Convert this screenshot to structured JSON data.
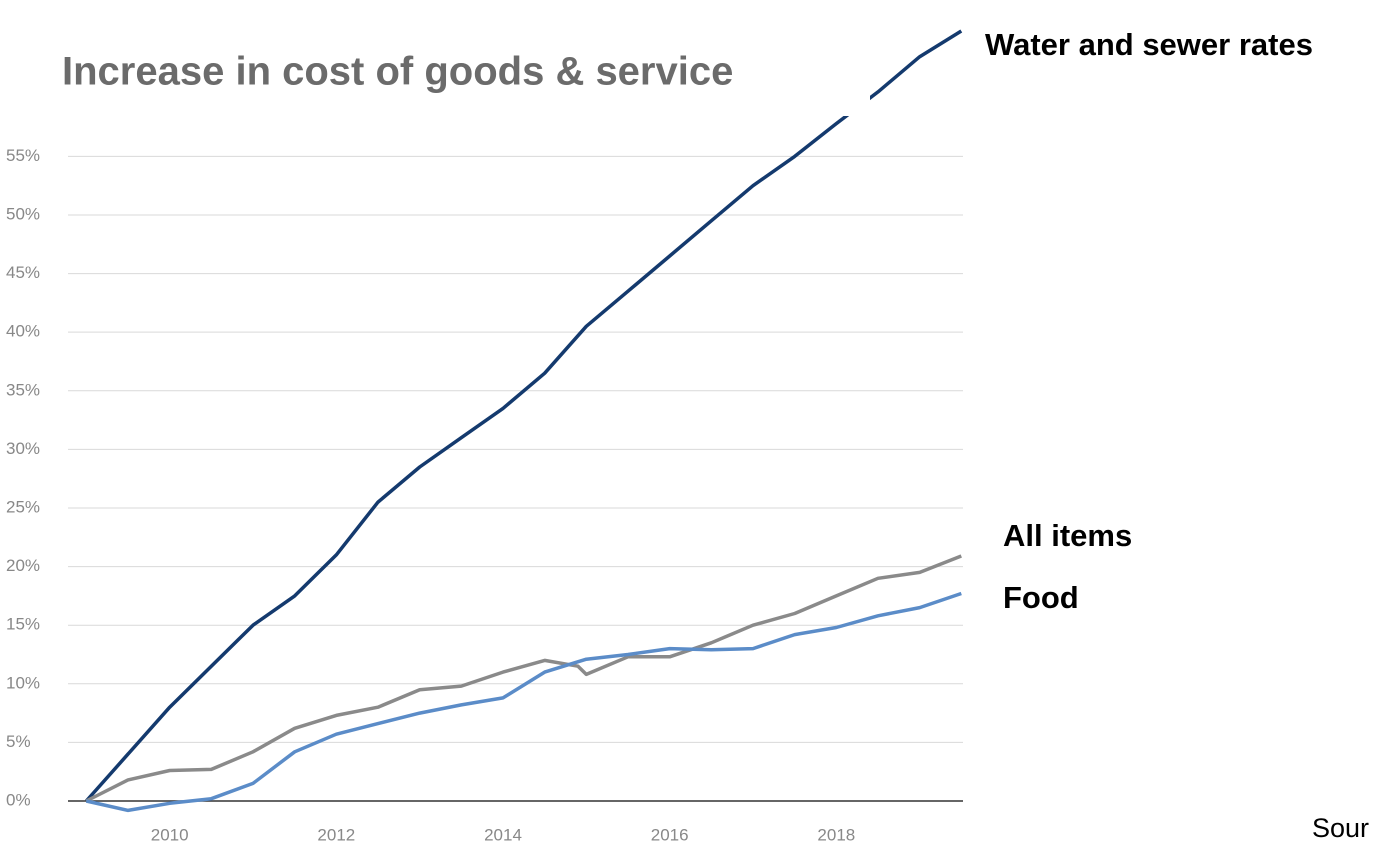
{
  "chart_data": {
    "type": "line",
    "title": "Increase in cost of goods & service",
    "source": "Sour",
    "xlim": [
      2008.78,
      2019.52
    ],
    "xticks": [
      2010,
      2012,
      2014,
      2016,
      2018
    ],
    "ylim": [
      0,
      68
    ],
    "yticks": [
      {
        "value": 0,
        "label": "0%"
      },
      {
        "value": 5,
        "label": "5%"
      },
      {
        "value": 10,
        "label": "10%"
      },
      {
        "value": 15,
        "label": "15%"
      },
      {
        "value": 20,
        "label": "20%"
      },
      {
        "value": 25,
        "label": "25%"
      },
      {
        "value": 30,
        "label": "30%"
      },
      {
        "value": 35,
        "label": "35%"
      },
      {
        "value": 40,
        "label": "40%"
      },
      {
        "value": 45,
        "label": "45%"
      },
      {
        "value": 50,
        "label": "50%"
      },
      {
        "value": 55,
        "label": "55%"
      }
    ],
    "grid": true,
    "series": [
      {
        "name": "Water and sewer rates",
        "color": "#143a6e",
        "x": [
          2009.0,
          2009.5,
          2010.0,
          2010.5,
          2011.0,
          2011.5,
          2012.0,
          2012.5,
          2013.0,
          2013.5,
          2014.0,
          2014.5,
          2015.0,
          2015.5,
          2016.0,
          2016.5,
          2017.0,
          2017.5,
          2018.0,
          2018.5,
          2019.0,
          2019.5
        ],
        "values": [
          0,
          4,
          8,
          11.5,
          15,
          17.5,
          21,
          25.5,
          28.5,
          31,
          33.5,
          36.5,
          40.5,
          43.5,
          46.5,
          49.5,
          52.5,
          55,
          57.8,
          60.5,
          63.5,
          65.7
        ]
      },
      {
        "name": "All items",
        "color": "#8a8a8a",
        "x": [
          2009.0,
          2009.5,
          2010.0,
          2010.5,
          2011.0,
          2011.5,
          2012.0,
          2012.5,
          2013.0,
          2013.5,
          2014.0,
          2014.5,
          2014.9,
          2015.0,
          2015.5,
          2016.0,
          2016.5,
          2017.0,
          2017.5,
          2018.0,
          2018.5,
          2019.0,
          2019.5
        ],
        "values": [
          0,
          1.8,
          2.6,
          2.7,
          4.2,
          6.2,
          7.3,
          8,
          9.5,
          9.8,
          11,
          12,
          11.5,
          10.8,
          12.3,
          12.3,
          13.5,
          15,
          16,
          17.5,
          19,
          19.5,
          20.9
        ]
      },
      {
        "name": "Food",
        "color": "#5b8cc8",
        "x": [
          2009.0,
          2009.5,
          2010.0,
          2010.5,
          2011.0,
          2011.5,
          2012.0,
          2012.5,
          2013.0,
          2013.5,
          2014.0,
          2014.5,
          2015.0,
          2015.5,
          2016.0,
          2016.5,
          2017.0,
          2017.5,
          2018.0,
          2018.5,
          2019.0,
          2019.5
        ],
        "values": [
          0,
          -0.8,
          -0.2,
          0.2,
          1.5,
          4.2,
          5.7,
          6.6,
          7.5,
          8.2,
          8.8,
          11,
          12.1,
          12.5,
          13,
          12.9,
          13,
          14.2,
          14.8,
          15.8,
          16.5,
          17.7
        ]
      }
    ]
  }
}
